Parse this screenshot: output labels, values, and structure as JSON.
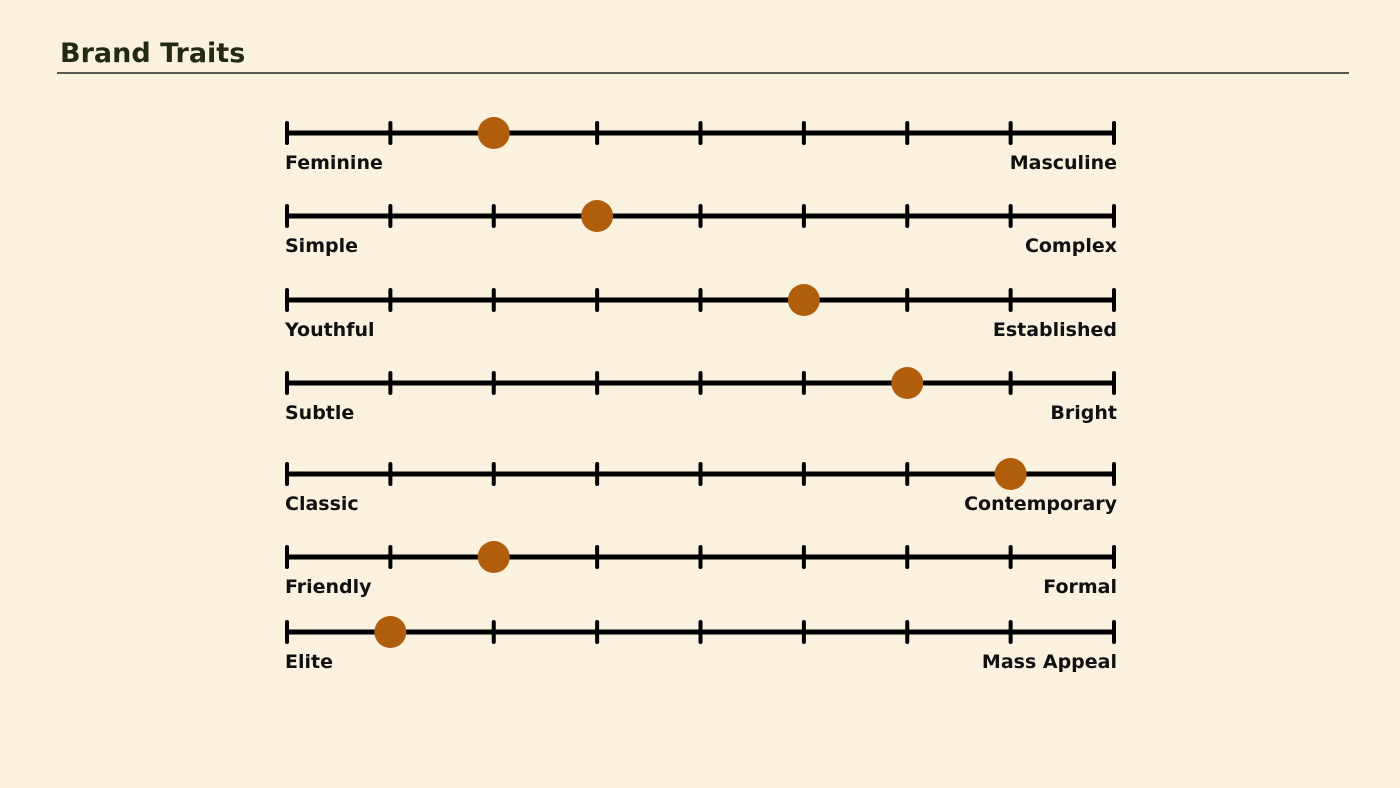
{
  "header": {
    "title": "Brand Traits"
  },
  "scale": {
    "min": 0,
    "max": 8,
    "ticks": [
      0,
      1,
      2,
      3,
      4,
      5,
      6,
      7,
      8
    ]
  },
  "dot_color": "#b05d0c",
  "traits": [
    {
      "left": "Feminine",
      "right": "Masculine",
      "value": 2
    },
    {
      "left": "Simple",
      "right": "Complex",
      "value": 3
    },
    {
      "left": "Youthful",
      "right": "Established",
      "value": 5
    },
    {
      "left": "Subtle",
      "right": "Bright",
      "value": 6
    },
    {
      "left": "Classic",
      "right": "Contemporary",
      "value": 7
    },
    {
      "left": "Friendly",
      "right": "Formal",
      "value": 2
    },
    {
      "left": "Elite",
      "right": "Mass Appeal",
      "value": 1
    }
  ]
}
